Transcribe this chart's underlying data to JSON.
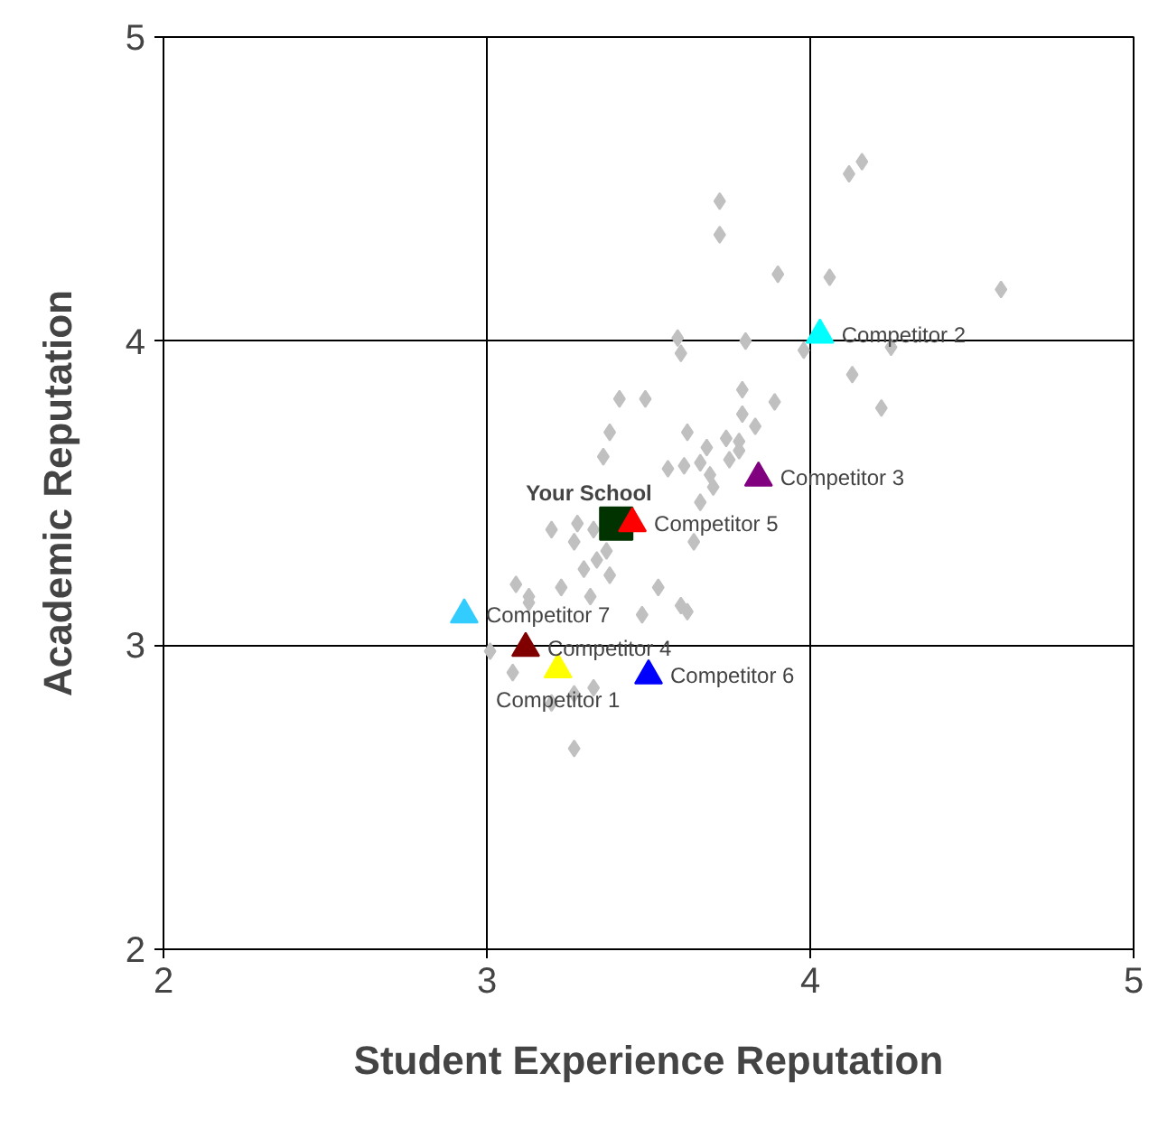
{
  "chart_data": {
    "type": "scatter",
    "xlabel": "Student Experience Reputation",
    "ylabel": "Academic Reputation",
    "xlim": [
      2,
      5
    ],
    "ylim": [
      2,
      5
    ],
    "xticks": [
      2,
      3,
      4,
      5
    ],
    "yticks": [
      2,
      3,
      4,
      5
    ],
    "grid": true,
    "series": [
      {
        "color": "#c0c0c0",
        "marker": "diamond",
        "x": [
          4.16,
          4.12,
          3.72,
          3.72,
          3.59,
          3.6,
          3.8,
          3.41,
          3.49,
          3.79,
          3.79,
          3.83,
          3.38,
          3.62,
          3.68,
          3.78,
          3.9,
          4.06,
          4.59,
          3.98,
          4.25,
          4.13,
          4.22,
          3.89,
          3.2,
          3.28,
          3.27,
          3.37,
          3.34,
          3.38,
          3.3,
          3.32,
          3.23,
          3.09,
          3.13,
          3.13,
          3.53,
          3.48,
          3.6,
          3.62,
          3.01,
          3.08,
          3.2,
          3.27,
          3.33,
          3.27,
          3.64,
          3.36,
          3.56,
          3.61,
          3.66,
          3.69,
          3.7,
          3.66,
          3.75,
          3.74,
          3.78,
          3.33
        ],
        "values": [
          4.59,
          4.55,
          4.46,
          4.35,
          4.01,
          3.96,
          4.0,
          3.81,
          3.81,
          3.84,
          3.76,
          3.72,
          3.7,
          3.7,
          3.65,
          3.67,
          4.22,
          4.21,
          4.17,
          3.97,
          3.98,
          3.89,
          3.78,
          3.8,
          3.38,
          3.4,
          3.34,
          3.31,
          3.28,
          3.23,
          3.25,
          3.16,
          3.19,
          3.2,
          3.16,
          3.14,
          3.19,
          3.1,
          3.13,
          3.11,
          2.98,
          2.91,
          2.81,
          2.84,
          2.86,
          2.66,
          3.34,
          3.62,
          3.58,
          3.59,
          3.6,
          3.56,
          3.52,
          3.47,
          3.61,
          3.68,
          3.64,
          3.38
        ]
      },
      {
        "name": "Your School",
        "color": "#003300",
        "marker": "square",
        "x": [
          3.4
        ],
        "values": [
          3.4
        ]
      },
      {
        "name": "Competitor 5",
        "color": "#ff0000",
        "marker": "triangle",
        "x": [
          3.45
        ],
        "values": [
          3.4
        ]
      },
      {
        "name": "Competitor 3",
        "color": "#800080",
        "marker": "triangle",
        "x": [
          3.84
        ],
        "values": [
          3.55
        ]
      },
      {
        "name": "Competitor 2",
        "color": "#00ffff",
        "marker": "triangle",
        "x": [
          4.03
        ],
        "values": [
          4.02
        ]
      },
      {
        "name": "Competitor 7",
        "color": "#33ccff",
        "marker": "triangle",
        "x": [
          2.93
        ],
        "values": [
          3.1
        ]
      },
      {
        "name": "Competitor 4",
        "color": "#800000",
        "marker": "triangle",
        "x": [
          3.12
        ],
        "values": [
          2.99
        ]
      },
      {
        "name": "Competitor 1",
        "color": "#ffff00",
        "marker": "triangle",
        "x": [
          3.22
        ],
        "values": [
          2.92
        ]
      },
      {
        "name": "Competitor 6",
        "color": "#0000ff",
        "marker": "triangle",
        "x": [
          3.5
        ],
        "values": [
          2.9
        ]
      }
    ]
  }
}
